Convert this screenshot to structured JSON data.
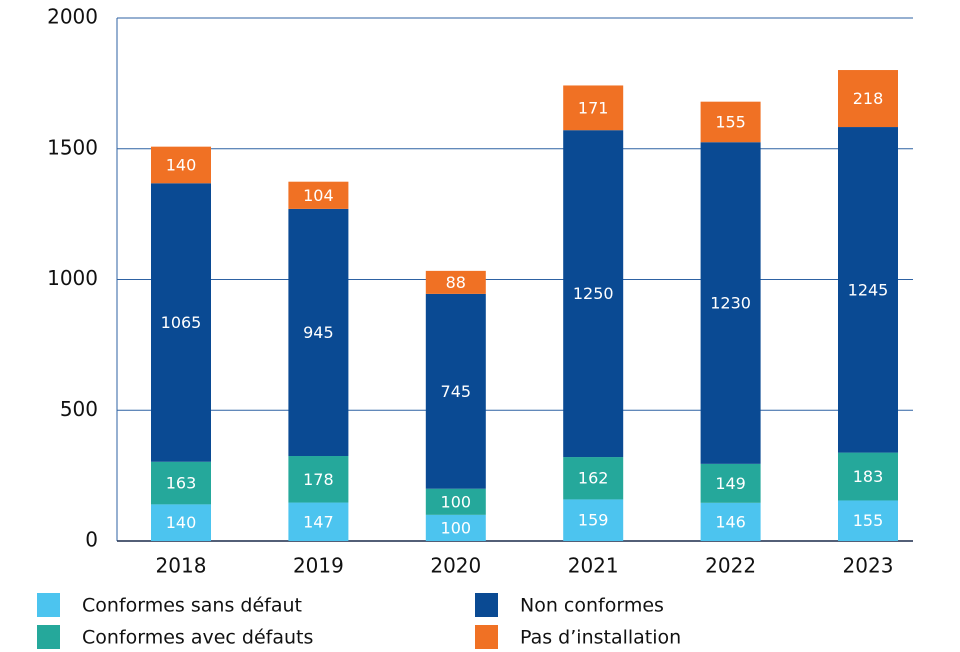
{
  "chart_data": {
    "type": "stacked_bar",
    "categories": [
      "2018",
      "2019",
      "2020",
      "2021",
      "2022",
      "2023"
    ],
    "series": [
      {
        "name": "Conformes sans défaut",
        "color": "#4cc4ef",
        "values": [
          140,
          147,
          100,
          159,
          146,
          155
        ]
      },
      {
        "name": "Conformes avec défauts",
        "color": "#25a89b",
        "values": [
          163,
          178,
          100,
          162,
          149,
          183
        ]
      },
      {
        "name": "Non conformes",
        "color": "#0a4a93",
        "values": [
          1065,
          945,
          745,
          1250,
          1230,
          1245
        ]
      },
      {
        "name": "Pas d’installation",
        "color": "#f07124",
        "values": [
          140,
          104,
          88,
          171,
          155,
          218
        ]
      }
    ],
    "ylim": [
      0,
      2000
    ],
    "yticks": [
      0,
      500,
      1000,
      1500,
      2000
    ],
    "grid": true
  }
}
